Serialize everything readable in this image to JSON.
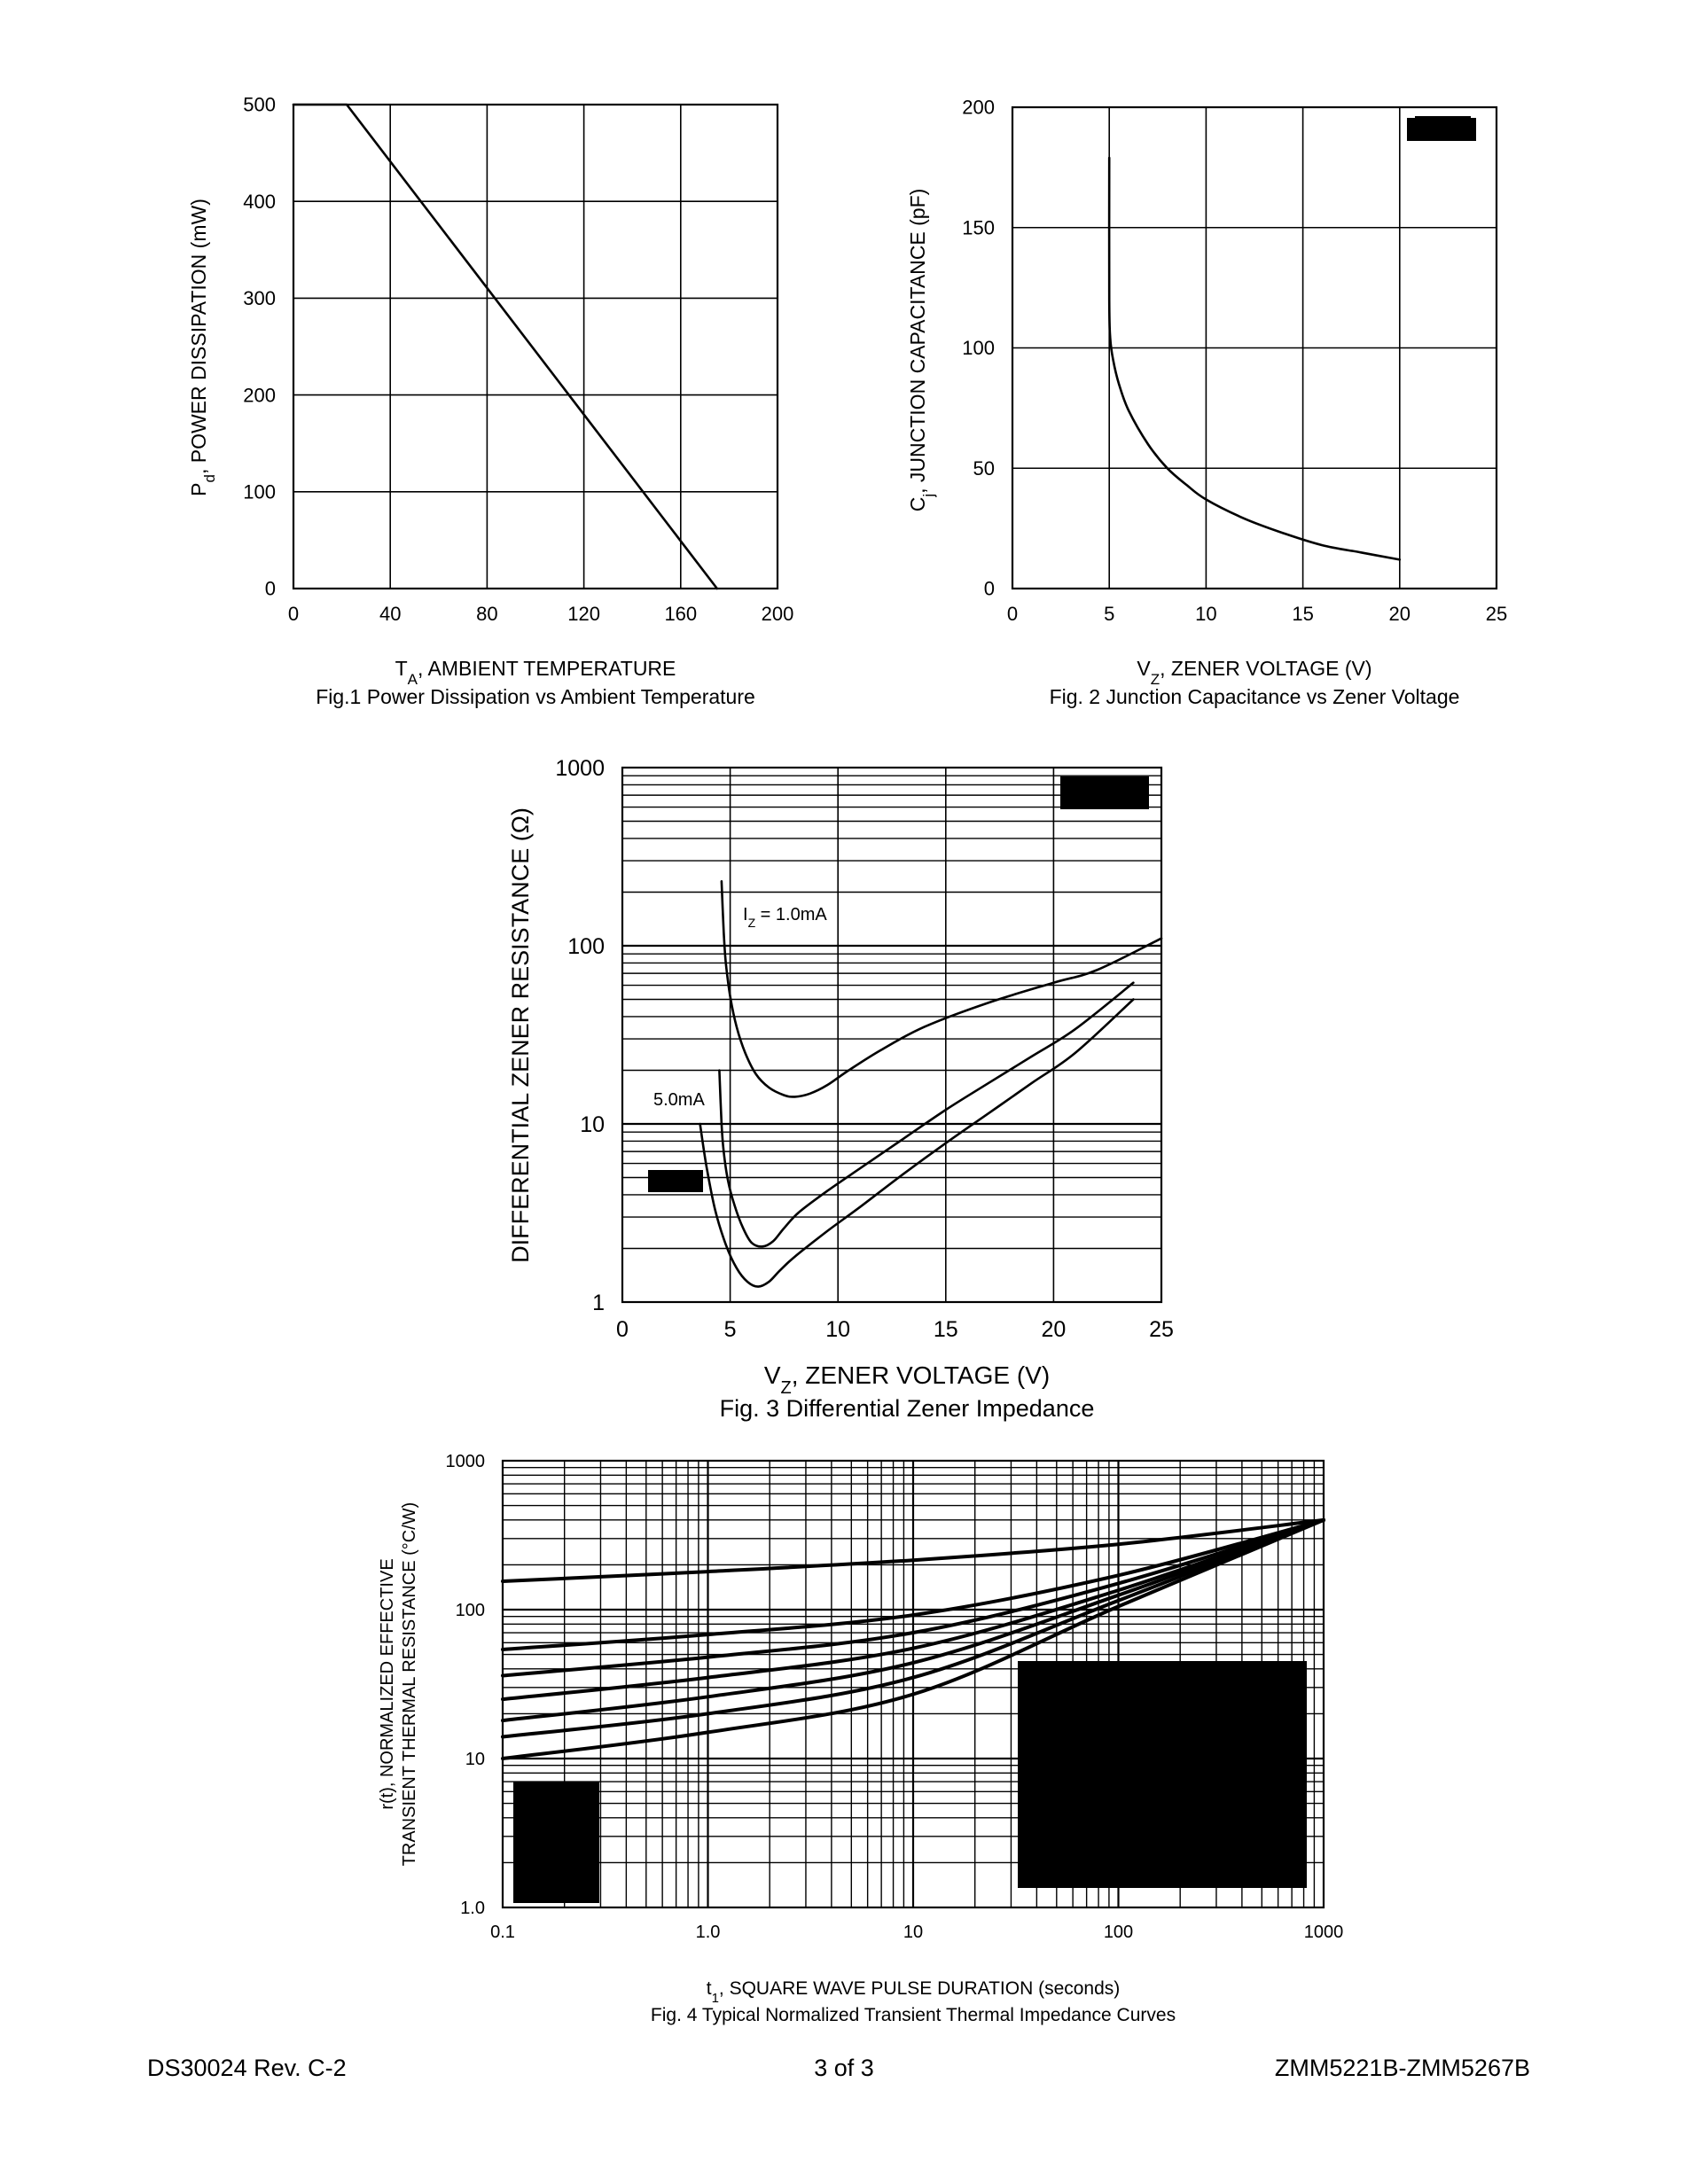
{
  "chart_data": [
    {
      "id": "fig1",
      "type": "line",
      "title": "Fig.1  Power Dissipation vs Ambient Temperature",
      "xlabel": "T",
      "xlabel_sub": "A",
      "xlabel_rest": ", AMBIENT TEMPERATURE",
      "ylabel": "P",
      "ylabel_sub": "d",
      "ylabel_rest": ", POWER DISSIPATION (mW)",
      "xlim": [
        0,
        200
      ],
      "ylim": [
        0,
        500
      ],
      "xticks": [
        "0",
        "40",
        "80",
        "120",
        "160",
        "200"
      ],
      "yticks": [
        "0",
        "100",
        "200",
        "300",
        "400",
        "500"
      ],
      "grid": true,
      "series": [
        {
          "x": [
            0,
            22,
            175
          ],
          "y": [
            500,
            500,
            0
          ]
        }
      ]
    },
    {
      "id": "fig2",
      "type": "line",
      "title": "Fig. 2  Junction Capacitance vs Zener Voltage",
      "xlabel": "V",
      "xlabel_sub": "Z",
      "xlabel_rest": ", ZENER VOLTAGE (V)",
      "ylabel": "C",
      "ylabel_sub": "j",
      "ylabel_rest": ", JUNCTION CAPACITANCE (pF)",
      "xlim": [
        0,
        25
      ],
      "ylim": [
        0,
        200
      ],
      "xticks": [
        "0",
        "5",
        "10",
        "15",
        "20",
        "25"
      ],
      "yticks": [
        "0",
        "50",
        "100",
        "150",
        "200"
      ],
      "grid": true,
      "series": [
        {
          "x": [
            5,
            5,
            5.05,
            5.2,
            5.5,
            6,
            7,
            8,
            9,
            10,
            12,
            14,
            16,
            18,
            20
          ],
          "y": [
            179,
            120,
            104,
            95,
            85,
            74,
            60,
            50,
            43,
            37,
            29,
            23,
            18,
            15,
            12
          ]
        }
      ]
    },
    {
      "id": "fig3",
      "type": "line",
      "title": "Fig. 3  Differential Zener Impedance",
      "xlabel": "V",
      "xlabel_sub": "Z",
      "xlabel_rest": ", ZENER VOLTAGE (V)",
      "ylabel": "DIFFERENTIAL ZENER RESISTANCE (Ω)",
      "xlim": [
        0,
        25
      ],
      "ylim": [
        1,
        1000
      ],
      "yscale": "log",
      "xticks": [
        "0",
        "5",
        "10",
        "15",
        "20",
        "25"
      ],
      "yticks": [
        "1",
        "10",
        "100",
        "1000"
      ],
      "grid": true,
      "annotations": [
        {
          "text": "I",
          "sub": "Z",
          "rest": " = 1.0mA"
        },
        {
          "text": "5.0mA"
        }
      ],
      "series": [
        {
          "x": [
            4.6,
            4.7,
            4.8,
            5.0,
            5.3,
            5.7,
            6.2,
            6.8,
            7.5,
            8.0,
            8.7,
            9.5,
            10.5,
            12,
            14,
            17,
            20,
            22,
            25
          ],
          "y": [
            230,
            120,
            80,
            52,
            35,
            25,
            19,
            16,
            14.5,
            14.2,
            14.8,
            16.5,
            20,
            26,
            35,
            48,
            62,
            73,
            110
          ]
        },
        {
          "x": [
            4.5,
            4.6,
            4.7,
            4.9,
            5.2,
            5.6,
            6.0,
            6.5,
            7.0,
            7.5,
            8.2,
            9.5,
            11,
            13,
            15,
            17,
            19,
            21,
            23.7
          ],
          "y": [
            20,
            10,
            7,
            4.8,
            3.5,
            2.6,
            2.15,
            2.05,
            2.2,
            2.6,
            3.2,
            4.2,
            5.6,
            8.2,
            12,
            17,
            24,
            34,
            62
          ]
        },
        {
          "x": [
            3.6,
            3.9,
            4.3,
            4.8,
            5.3,
            5.8,
            6.3,
            6.8,
            7.3,
            8.0,
            9.5,
            11,
            13,
            15,
            17,
            19,
            21,
            23.7
          ],
          "y": [
            10,
            5.8,
            3.3,
            2.1,
            1.55,
            1.3,
            1.22,
            1.3,
            1.5,
            1.8,
            2.5,
            3.4,
            5.2,
            7.8,
            11.5,
            17,
            25,
            50
          ]
        }
      ]
    },
    {
      "id": "fig4",
      "type": "line",
      "title": "Fig. 4  Typical Normalized Transient Thermal Impedance Curves",
      "xlabel": "t",
      "xlabel_sub": "1",
      "xlabel_rest": ", SQUARE WAVE PULSE DURATION (seconds)",
      "ylabel_line1": "r(t), NORMALIZED EFFECTIVE",
      "ylabel_line2": "TRANSIENT THERMAL RESISTANCE (°C/W)",
      "xlim": [
        0.1,
        1000
      ],
      "ylim": [
        1,
        1000
      ],
      "xscale": "log",
      "yscale": "log",
      "xticks": [
        "0.1",
        "1.0",
        "10",
        "100",
        "1000"
      ],
      "yticks": [
        "1.0",
        "10",
        "100",
        "1000"
      ],
      "grid": true,
      "series": [
        {
          "x": [
            0.1,
            1,
            10,
            100,
            1000
          ],
          "y": [
            155,
            180,
            215,
            275,
            400
          ]
        },
        {
          "x": [
            0.1,
            1,
            10,
            100,
            1000
          ],
          "y": [
            54,
            68,
            92,
            170,
            400
          ]
        },
        {
          "x": [
            0.1,
            1,
            10,
            100,
            1000
          ],
          "y": [
            36,
            48,
            70,
            150,
            400
          ]
        },
        {
          "x": [
            0.1,
            1,
            10,
            100,
            1000
          ],
          "y": [
            25,
            35,
            55,
            135,
            400
          ]
        },
        {
          "x": [
            0.1,
            1,
            10,
            100,
            1000
          ],
          "y": [
            18,
            26,
            44,
            125,
            400
          ]
        },
        {
          "x": [
            0.1,
            1,
            10,
            100,
            1000
          ],
          "y": [
            14,
            20,
            35,
            115,
            400
          ]
        },
        {
          "x": [
            0.1,
            1,
            10,
            100,
            1000
          ],
          "y": [
            10,
            15,
            27,
            105,
            400
          ]
        }
      ]
    }
  ],
  "footer": {
    "left": "DS30024 Rev. C-2",
    "center": "3 of 3",
    "right": "ZMM5221B-ZMM5267B"
  }
}
